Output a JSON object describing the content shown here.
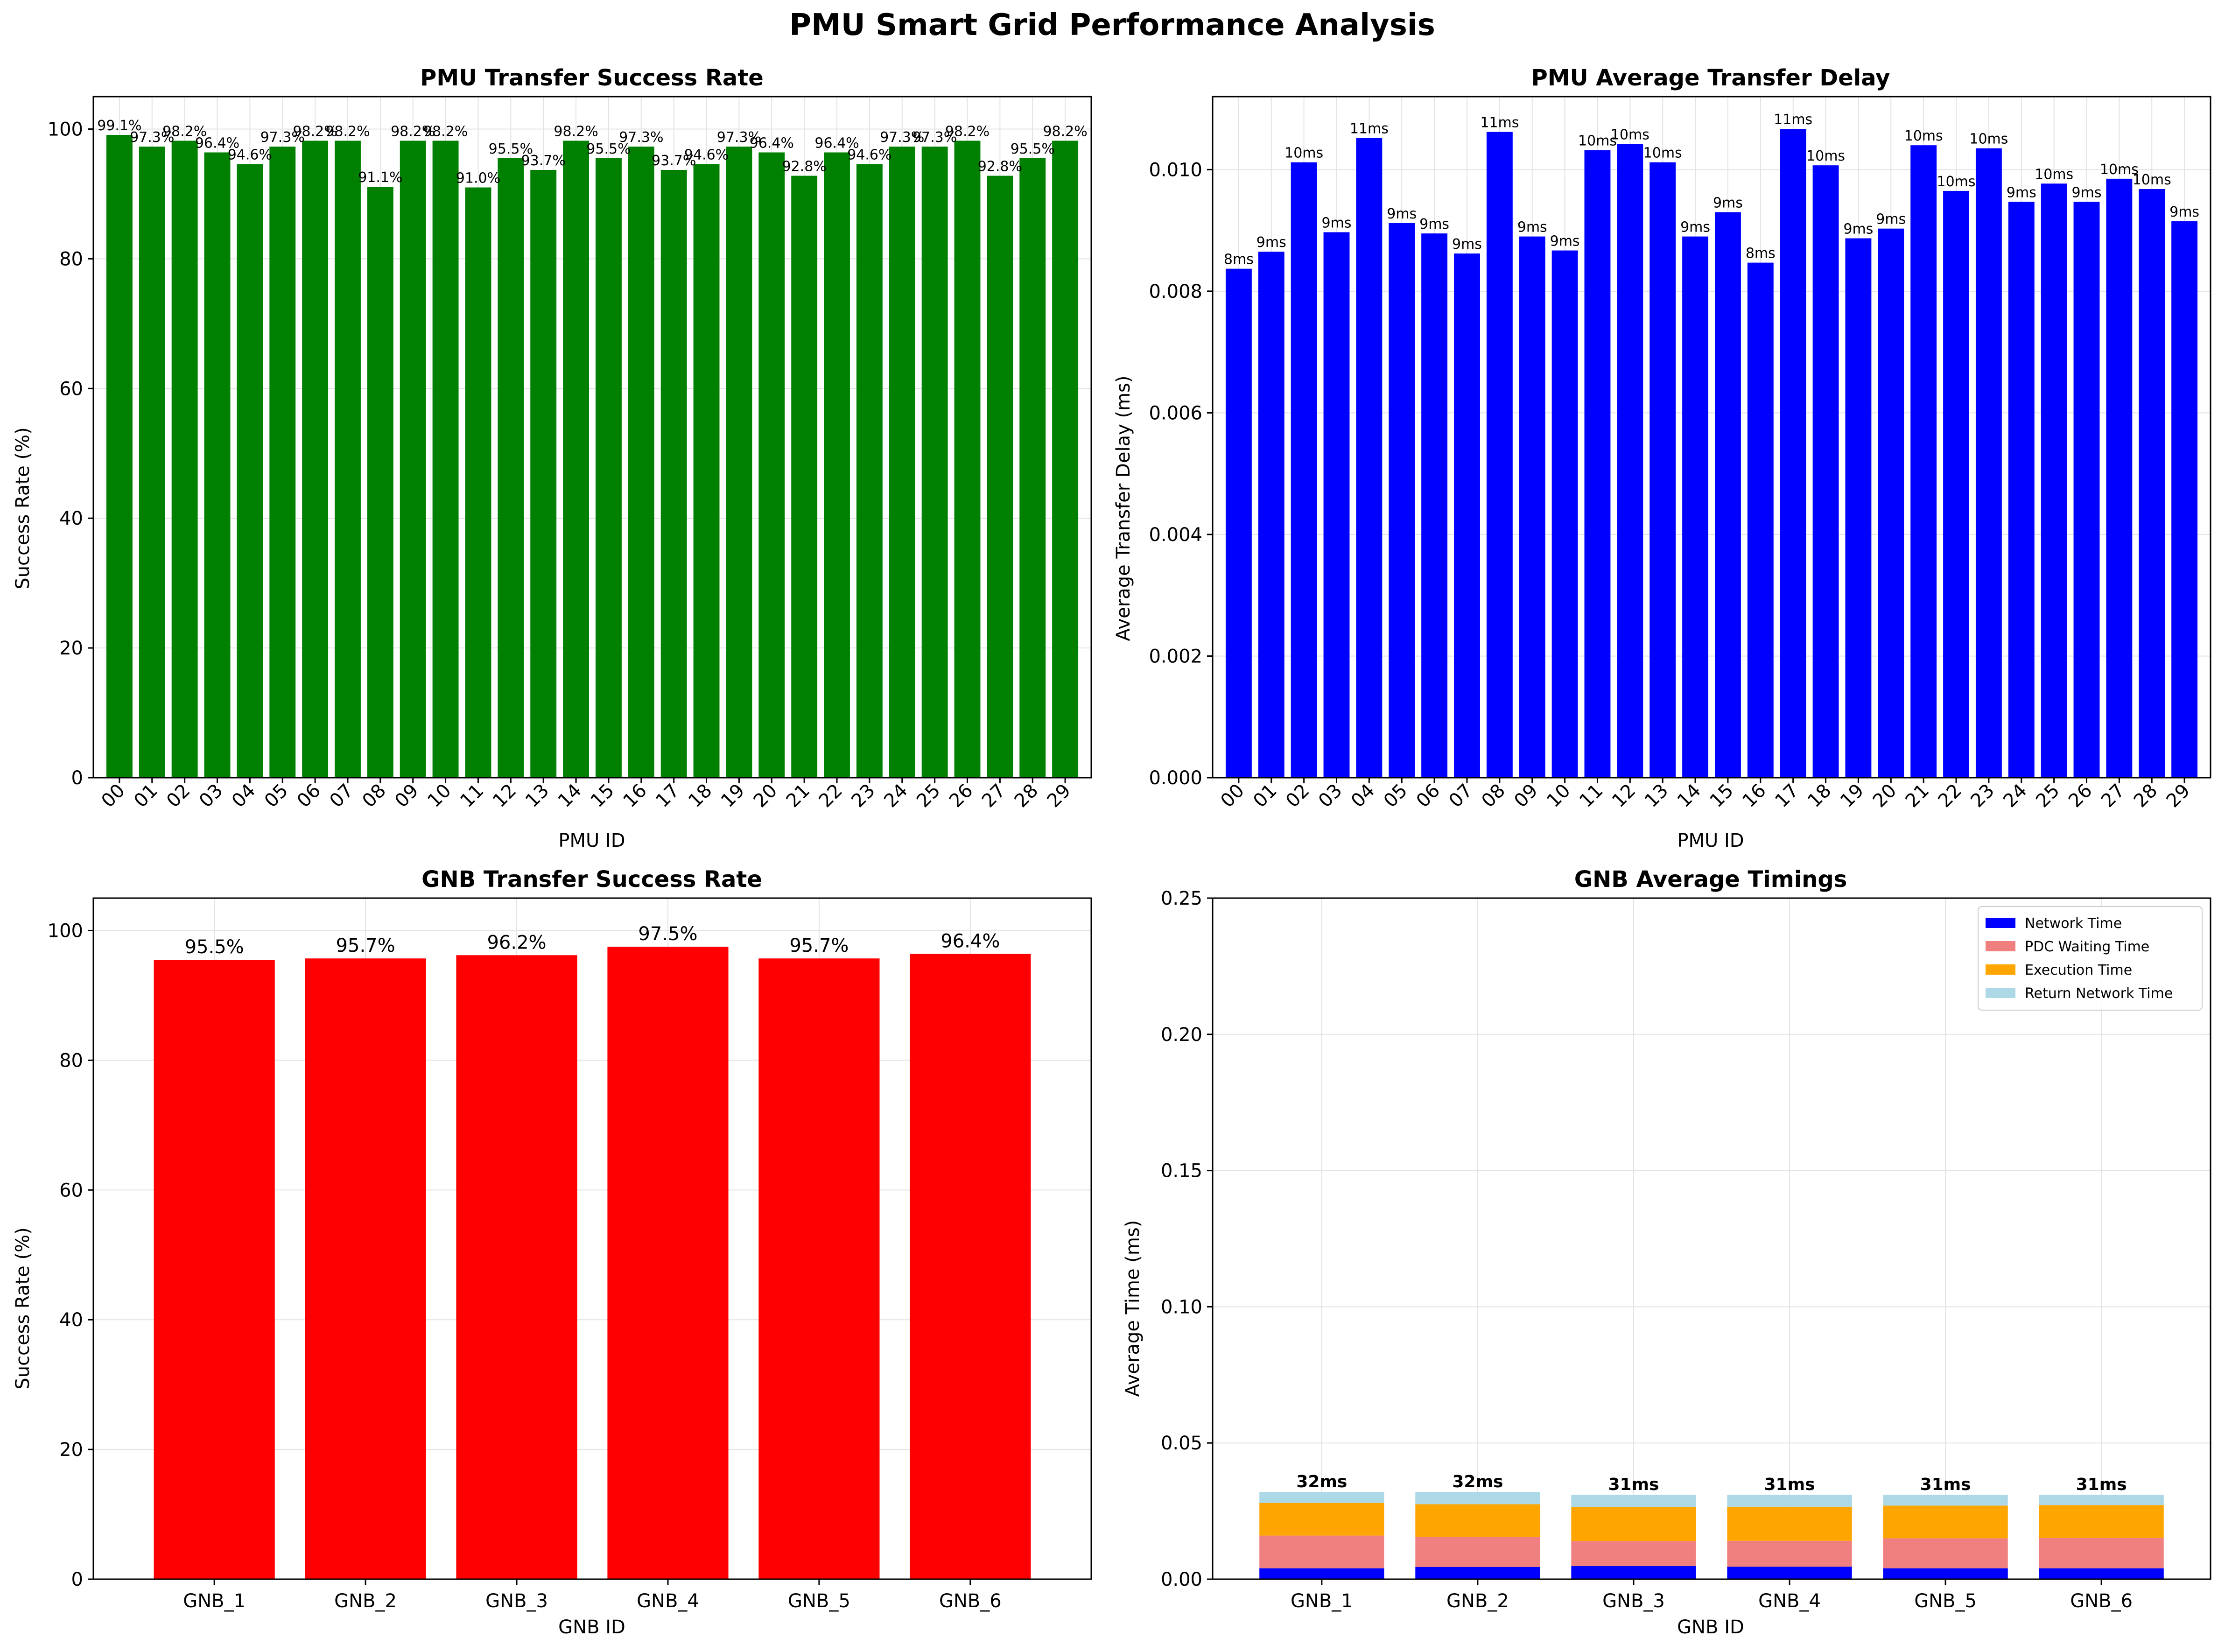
{
  "figure": {
    "title": "PMU Smart Grid Performance Analysis"
  },
  "chart_data": [
    {
      "type": "bar",
      "title": "PMU Transfer Success Rate",
      "xlabel": "PMU ID",
      "ylabel": "Success Rate (%)",
      "ylim": [
        0,
        105
      ],
      "yticks": [
        0,
        20,
        40,
        60,
        80,
        100
      ],
      "grid": true,
      "color": "#008000",
      "categories": [
        "00",
        "01",
        "02",
        "03",
        "04",
        "05",
        "06",
        "07",
        "08",
        "09",
        "10",
        "11",
        "12",
        "13",
        "14",
        "15",
        "16",
        "17",
        "18",
        "19",
        "20",
        "21",
        "22",
        "23",
        "24",
        "25",
        "26",
        "27",
        "28",
        "29"
      ],
      "values": [
        99.1,
        97.3,
        98.2,
        96.4,
        94.6,
        97.3,
        98.2,
        98.2,
        91.1,
        98.2,
        98.2,
        91.0,
        95.5,
        93.7,
        98.2,
        95.5,
        97.3,
        93.7,
        94.6,
        97.3,
        96.4,
        92.8,
        96.4,
        94.6,
        97.3,
        97.3,
        98.2,
        92.8,
        95.5,
        98.2
      ],
      "labels": [
        "99.1%",
        "97.3%",
        "98.2%",
        "96.4%",
        "94.6%",
        "97.3%",
        "98.2%",
        "98.2%",
        "91.1%",
        "98.2%",
        "98.2%",
        "91.0%",
        "95.5%",
        "93.7%",
        "98.2%",
        "95.5%",
        "97.3%",
        "93.7%",
        "94.6%",
        "97.3%",
        "96.4%",
        "92.8%",
        "96.4%",
        "94.6%",
        "97.3%",
        "97.3%",
        "98.2%",
        "92.8%",
        "95.5%",
        "98.2%"
      ]
    },
    {
      "type": "bar",
      "title": "PMU Average Transfer Delay",
      "xlabel": "PMU ID",
      "ylabel": "Average Transfer Delay (ms)",
      "ylim": [
        0,
        0.0112
      ],
      "yticks": [
        0.0,
        0.002,
        0.004,
        0.006,
        0.008,
        0.01
      ],
      "ytick_labels": [
        "0.000",
        "0.002",
        "0.004",
        "0.006",
        "0.008",
        "0.010"
      ],
      "grid": true,
      "color": "#0000ff",
      "categories": [
        "00",
        "01",
        "02",
        "03",
        "04",
        "05",
        "06",
        "07",
        "08",
        "09",
        "10",
        "11",
        "12",
        "13",
        "14",
        "15",
        "16",
        "17",
        "18",
        "19",
        "20",
        "21",
        "22",
        "23",
        "24",
        "25",
        "26",
        "27",
        "28",
        "29"
      ],
      "values": [
        0.00837,
        0.00865,
        0.01012,
        0.00897,
        0.01052,
        0.00912,
        0.00895,
        0.00862,
        0.01062,
        0.0089,
        0.00867,
        0.01032,
        0.01042,
        0.01012,
        0.0089,
        0.0093,
        0.00847,
        0.01067,
        0.01007,
        0.00887,
        0.00903,
        0.0104,
        0.00965,
        0.01035,
        0.00947,
        0.00977,
        0.00947,
        0.00985,
        0.00968,
        0.00915
      ],
      "labels": [
        "8ms",
        "9ms",
        "10ms",
        "9ms",
        "11ms",
        "9ms",
        "9ms",
        "9ms",
        "11ms",
        "9ms",
        "9ms",
        "10ms",
        "10ms",
        "10ms",
        "9ms",
        "9ms",
        "8ms",
        "11ms",
        "10ms",
        "9ms",
        "9ms",
        "10ms",
        "10ms",
        "10ms",
        "9ms",
        "10ms",
        "9ms",
        "10ms",
        "10ms",
        "9ms"
      ]
    },
    {
      "type": "bar",
      "title": "GNB Transfer Success Rate",
      "xlabel": "GNB ID",
      "ylabel": "Success Rate (%)",
      "ylim": [
        0,
        105
      ],
      "yticks": [
        0,
        20,
        40,
        60,
        80,
        100
      ],
      "grid": true,
      "color": "#ff0000",
      "categories": [
        "GNB_1",
        "GNB_2",
        "GNB_3",
        "GNB_4",
        "GNB_5",
        "GNB_6"
      ],
      "values": [
        95.5,
        95.7,
        96.2,
        97.5,
        95.7,
        96.4
      ],
      "labels": [
        "95.5%",
        "95.7%",
        "96.2%",
        "97.5%",
        "95.7%",
        "96.4%"
      ]
    },
    {
      "type": "bar",
      "stacked": true,
      "title": "GNB Average Timings",
      "xlabel": "GNB ID",
      "ylabel": "Average Time (ms)",
      "ylim": [
        0,
        0.25
      ],
      "yticks": [
        0.0,
        0.05,
        0.1,
        0.15,
        0.2,
        0.25
      ],
      "ytick_labels": [
        "0.00",
        "0.05",
        "0.10",
        "0.15",
        "0.20",
        "0.25"
      ],
      "grid": true,
      "legend_position": "top-right",
      "categories": [
        "GNB_1",
        "GNB_2",
        "GNB_3",
        "GNB_4",
        "GNB_5",
        "GNB_6"
      ],
      "series": [
        {
          "name": "Network Time",
          "color": "#0000ff",
          "values": [
            0.004,
            0.0045,
            0.0048,
            0.0046,
            0.004,
            0.004
          ]
        },
        {
          "name": "PDC Waiting Time",
          "color": "#f08080",
          "values": [
            0.012,
            0.011,
            0.0092,
            0.0095,
            0.011,
            0.0112
          ]
        },
        {
          "name": "Execution Time",
          "color": "#ffa500",
          "values": [
            0.012,
            0.012,
            0.0125,
            0.0125,
            0.012,
            0.012
          ]
        },
        {
          "name": "Return Network Time",
          "color": "#add8e6",
          "values": [
            0.004,
            0.0045,
            0.0045,
            0.0044,
            0.004,
            0.0038
          ]
        }
      ],
      "labels": [
        "32ms",
        "32ms",
        "31ms",
        "31ms",
        "31ms",
        "31ms"
      ]
    }
  ]
}
